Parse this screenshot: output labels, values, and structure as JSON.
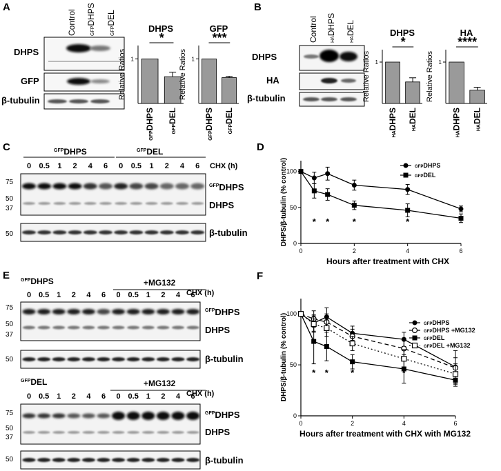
{
  "panels": {
    "A": {
      "label": "A",
      "lanes": [
        "Control",
        "DHPS",
        "DEL"
      ],
      "lane_sup": [
        "",
        "GFP",
        "GFP"
      ],
      "rows": [
        "DHPS",
        "GFP",
        "β-tubulin"
      ],
      "charts": [
        {
          "title": "DHPS",
          "ylabel": "Relative Ratios",
          "tick": "1",
          "star": "*"
        },
        {
          "title": "GFP",
          "ylabel": "Relative Ratios",
          "tick": "1",
          "star": "***"
        }
      ],
      "bar_labels": [
        {
          "sup": "GFP",
          "main": "DHPS"
        },
        {
          "sup": "GFP",
          "main": "DEL"
        }
      ]
    },
    "B": {
      "label": "B",
      "lanes": [
        "Control",
        "DHPS",
        "DEL"
      ],
      "lane_sup": [
        "",
        "HA",
        "HA"
      ],
      "rows": [
        "DHPS",
        "HA",
        "β-tubulin"
      ],
      "charts": [
        {
          "title": "DHPS",
          "ylabel": "Relative Ratios",
          "tick": "1",
          "star": "*"
        },
        {
          "title": "HA",
          "ylabel": "Relative Ratios",
          "tick": "1",
          "star": "****"
        }
      ],
      "bar_labels": [
        {
          "sup": "HA",
          "main": "DHPS"
        },
        {
          "sup": "HA",
          "main": "DEL"
        }
      ]
    },
    "C": {
      "label": "C",
      "groups": [
        {
          "sup": "GFP",
          "main": "DHPS"
        },
        {
          "sup": "GFP",
          "main": "DEL"
        }
      ],
      "timepoints": [
        "0",
        "0.5",
        "1",
        "2",
        "4",
        "6",
        "0",
        "0.5",
        "1",
        "2",
        "4",
        "6"
      ],
      "chx": "CHX (h)",
      "mw": [
        "75",
        "50",
        "37",
        "50"
      ],
      "band_gfp": {
        "sup": "GFP",
        "main": "DHPS"
      },
      "band_dhps": "DHPS",
      "band_tub": "β-tubulin"
    },
    "E": {
      "label": "E",
      "top_group": {
        "sup": "GFP",
        "main": "DHPS"
      },
      "bottom_group": {
        "sup": "GFP",
        "main": "DEL"
      },
      "mg": "+MG132",
      "chx": "CHX (h)",
      "timepoints": [
        "0",
        "0.5",
        "1",
        "2",
        "4",
        "6",
        "0",
        "0.5",
        "1",
        "2",
        "4",
        "6"
      ],
      "mw": [
        "75",
        "50",
        "37",
        "50"
      ],
      "band_gfp": {
        "sup": "GFP",
        "main": "DHPS"
      },
      "band_dhps": "DHPS",
      "band_tub": "β-tubulin"
    },
    "D": {
      "label": "D"
    },
    "F": {
      "label": "F"
    }
  },
  "chart_data": [
    {
      "id": "A-DHPS",
      "type": "bar",
      "title": "DHPS",
      "ylabel": "Relative Ratios",
      "categories": [
        "GFPDHPS",
        "GFPDEL"
      ],
      "values": [
        1.0,
        0.6
      ],
      "errors": [
        0,
        0.1
      ],
      "ylim": [
        0,
        1.3
      ],
      "significance": "*"
    },
    {
      "id": "A-GFP",
      "type": "bar",
      "title": "GFP",
      "ylabel": "Relative Ratios",
      "categories": [
        "GFPDHPS",
        "GFPDEL"
      ],
      "values": [
        1.0,
        0.58
      ],
      "errors": [
        0,
        0.03
      ],
      "ylim": [
        0,
        1.3
      ],
      "significance": "***"
    },
    {
      "id": "B-DHPS",
      "type": "bar",
      "title": "DHPS",
      "ylabel": "Relative Ratios",
      "categories": [
        "HADHPS",
        "HADEL"
      ],
      "values": [
        1.0,
        0.52
      ],
      "errors": [
        0,
        0.1
      ],
      "ylim": [
        0,
        1.3
      ],
      "significance": "*"
    },
    {
      "id": "B-HA",
      "type": "bar",
      "title": "HA",
      "ylabel": "Relative Ratios",
      "categories": [
        "HADHPS",
        "HADEL"
      ],
      "values": [
        1.0,
        0.32
      ],
      "errors": [
        0,
        0.07
      ],
      "ylim": [
        0,
        1.3
      ],
      "significance": "****"
    },
    {
      "id": "D",
      "type": "line",
      "xlabel": "Hours after treatment with CHX",
      "ylabel": "DHPS/β-tubulin (% control)",
      "xlim": [
        0,
        6
      ],
      "ylim": [
        0,
        115
      ],
      "xticks": [
        "0",
        "2",
        "4",
        "6"
      ],
      "yticks": [
        "0",
        "50",
        "100"
      ],
      "legend_position": "top-right",
      "x": [
        0,
        0.5,
        1,
        2,
        4,
        6
      ],
      "series": [
        {
          "name": "DHPS",
          "sup": "GFP",
          "marker": "circle",
          "dash": "solid",
          "values": [
            100,
            91,
            97,
            81,
            75,
            48
          ],
          "errors": [
            0,
            8,
            9,
            7,
            7,
            4
          ]
        },
        {
          "name": "DEL",
          "sup": "GFP",
          "marker": "square",
          "dash": "solid",
          "values": [
            100,
            73,
            68,
            53,
            46,
            35
          ],
          "errors": [
            0,
            10,
            8,
            6,
            9,
            6
          ]
        }
      ],
      "significance": [
        {
          "x": 0.5,
          "label": "*"
        },
        {
          "x": 1,
          "label": "*"
        },
        {
          "x": 2,
          "label": "*"
        },
        {
          "x": 4,
          "label": "*"
        }
      ]
    },
    {
      "id": "F",
      "type": "line",
      "xlabel": "Hours after treatment with CHX with MG132",
      "ylabel": "DHPS/β-tubulin (% control)",
      "xlim": [
        0,
        6
      ],
      "ylim": [
        0,
        115
      ],
      "xticks": [
        "0",
        "2",
        "4",
        "6"
      ],
      "yticks": [
        "0",
        "50",
        "100"
      ],
      "legend_position": "top-right",
      "x": [
        0,
        0.5,
        1,
        2,
        4,
        6
      ],
      "series": [
        {
          "name": "DHPS",
          "sup": "GFP",
          "marker": "circle",
          "dash": "solid",
          "values": [
            100,
            91,
            97,
            81,
            75,
            48
          ],
          "errors": [
            0,
            8,
            9,
            7,
            7,
            16
          ]
        },
        {
          "name": "DHPS +MG132",
          "sup": "GFP",
          "marker": "circle-open",
          "dash": "dashed",
          "values": [
            100,
            95,
            92,
            78,
            66,
            47
          ],
          "errors": [
            0,
            8,
            8,
            7,
            9,
            10
          ]
        },
        {
          "name": "DEL",
          "sup": "GFP",
          "marker": "square",
          "dash": "solid",
          "values": [
            100,
            73,
            68,
            53,
            46,
            35
          ],
          "errors": [
            0,
            22,
            14,
            7,
            14,
            6
          ]
        },
        {
          "name": "DEL +MG132",
          "sup": "GFP",
          "marker": "square-open",
          "dash": "dotted",
          "values": [
            100,
            90,
            86,
            71,
            56,
            41
          ],
          "errors": [
            0,
            8,
            8,
            7,
            9,
            10
          ]
        }
      ],
      "significance": [
        {
          "x": 0.5,
          "label": "*"
        },
        {
          "x": 1,
          "label": "*"
        },
        {
          "x": 2,
          "label": "*"
        },
        {
          "x": 4,
          "label": "*"
        }
      ]
    }
  ]
}
